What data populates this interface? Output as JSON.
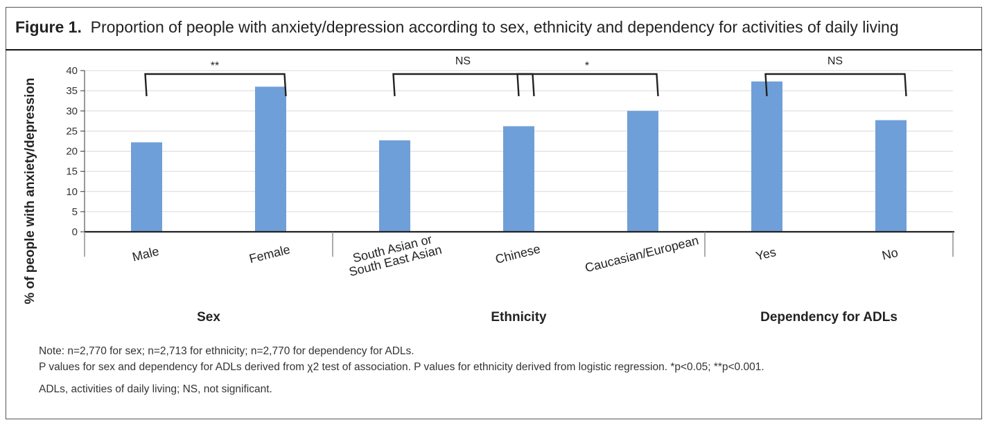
{
  "figure": {
    "label": "Figure 1.",
    "caption": "Proportion of people with anxiety/depression according to sex, ethnicity and dependency for activities of daily living"
  },
  "chart_data": {
    "type": "bar",
    "ylabel": "% of people with anxiety/depression",
    "ylim": [
      0,
      40
    ],
    "yticks": [
      "0",
      "5",
      "10",
      "15",
      "20",
      "25",
      "30",
      "35",
      "40"
    ],
    "color": "#6f9fd8",
    "categories": [
      "Male",
      "Female",
      "South Asian or South East Asian",
      "Chinese",
      "Caucasian/European",
      "Yes",
      "No"
    ],
    "category_lines": [
      [
        "Male"
      ],
      [
        "Female"
      ],
      [
        "South Asian or",
        "South East Asian"
      ],
      [
        "Chinese"
      ],
      [
        "Caucasian/European"
      ],
      [
        "Yes"
      ],
      [
        "No"
      ]
    ],
    "values": [
      22.2,
      36.0,
      22.7,
      26.2,
      30.0,
      37.3,
      27.7
    ],
    "groups": [
      {
        "name": "Sex",
        "start": 0,
        "end": 1
      },
      {
        "name": "Ethnicity",
        "start": 2,
        "end": 4
      },
      {
        "name": "Dependency for ADLs",
        "start": 5,
        "end": 6
      }
    ],
    "significance": [
      {
        "from": 0,
        "to": 1,
        "label": "**"
      },
      {
        "from": 2,
        "to": 3,
        "label": "NS"
      },
      {
        "from": 3,
        "to": 4,
        "label": "*"
      },
      {
        "from": 5,
        "to": 6,
        "label": "NS"
      }
    ]
  },
  "notes": {
    "line1": "Note: n=2,770 for sex; n=2,713 for ethnicity; n=2,770 for dependency for ADLs.",
    "line2": "P values for sex and dependency for ADLs derived from χ2 test of association. P values for ethnicity derived from logistic regression. *p<0.05; **p<0.001.",
    "line3": "ADLs, activities of daily living; NS, not significant."
  }
}
